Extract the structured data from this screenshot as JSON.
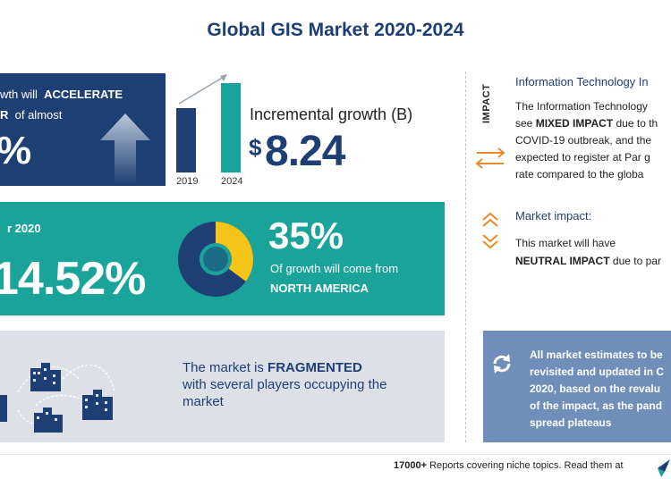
{
  "title": "Global GIS Market 2020-2024",
  "growth_panel": {
    "line1_prefix": "wth will",
    "line1_bold": "ACCELERATE",
    "line2_bold": "R",
    "line2_suffix": "of almost",
    "big_value": "%"
  },
  "bars": {
    "year_2019": "2019",
    "year_2024": "2024"
  },
  "incremental": {
    "label": "Incremental growth (B)",
    "currency": "$",
    "value": "8.24"
  },
  "yoy_panel": {
    "year_label": "r 2020",
    "value": "14.52%"
  },
  "region_panel": {
    "share": "35%",
    "share_fraction": 0.35,
    "text": "Of growth will come from",
    "region": "NORTH AMERICA"
  },
  "vendor_panel": {
    "text_prefix": "The market is",
    "text_bold": "FRAGMENTED",
    "text_rest_1": "with several players occupying the",
    "text_rest_2": "market"
  },
  "impact_sidebar": {
    "vertical_label": "IMPACT",
    "it_title": "Information Technology In",
    "it_line1": "The Information Technology",
    "it_line2_prefix": "see",
    "it_line2_bold": "MIXED IMPACT",
    "it_line2_suffix": "due to th",
    "it_line3": "COVID-19 outbreak, and the",
    "it_line4": "expected to register at Par g",
    "it_line5": "rate compared to the globa",
    "mi_title": "Market impact:",
    "mi_line1": "This market will have",
    "mi_line2_bold": "NEUTRAL IMPACT",
    "mi_line2_suffix": "due to par"
  },
  "estimates_panel": {
    "line1": "All market estimates to be",
    "line2": "revisited and updated in C",
    "line3": "2020, based on the revalu",
    "line4": "of the impact, as the pand",
    "line5": "spread plateaus"
  },
  "footer": {
    "count": "17000+",
    "text": "Reports covering niche topics. Read them at"
  },
  "colors": {
    "navy": "#1d3f73",
    "teal": "#1aa39a",
    "yellow": "#f5c419",
    "orange": "#e98b2a",
    "grey_panel": "#dde1e7",
    "blue_panel": "#6f8fba"
  }
}
